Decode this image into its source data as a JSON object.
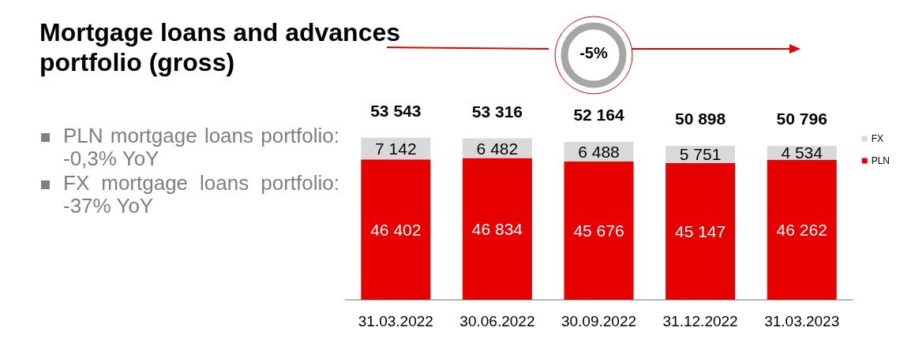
{
  "chart_data": {
    "type": "bar",
    "stacked": true,
    "title": "Mortgage loans and advances portfolio (gross)",
    "categories": [
      "31.03.2022",
      "30.06.2022",
      "30.09.2022",
      "31.12.2022",
      "31.03.2023"
    ],
    "series": [
      {
        "name": "PLN",
        "color": "#e60000",
        "values": [
          46402,
          46834,
          45676,
          45147,
          46262
        ]
      },
      {
        "name": "FX",
        "color": "#d9d9d9",
        "values": [
          7142,
          6482,
          6488,
          5751,
          4534
        ]
      }
    ],
    "totals": [
      "53 543",
      "53 316",
      "52 164",
      "50 898",
      "50 796"
    ],
    "data_labels": true,
    "legend": "right",
    "annotations": [
      "PLN mortgage loans portfolio: -0,3% YoY",
      "FX mortgage loans portfolio: -37% YoY",
      "-5%"
    ]
  }
}
